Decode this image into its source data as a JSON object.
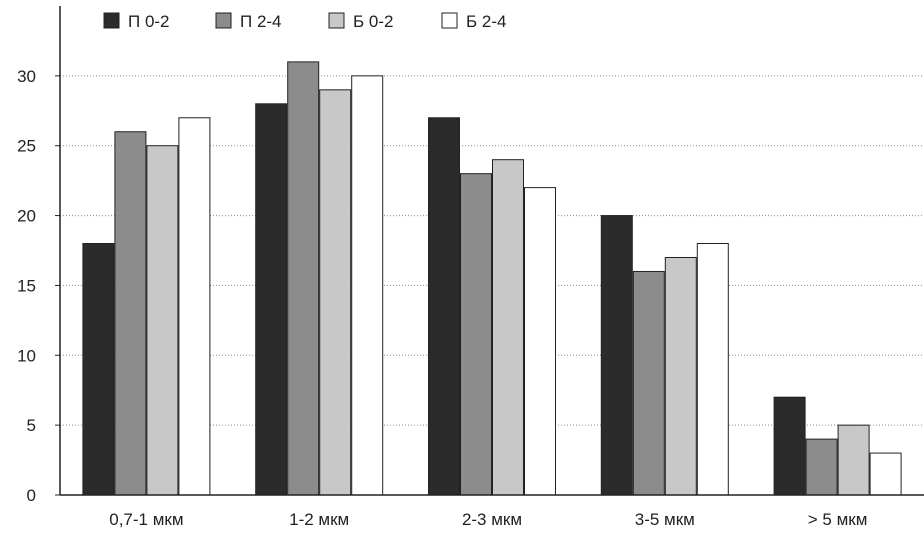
{
  "chart_data": {
    "type": "bar",
    "title": "",
    "xlabel": "",
    "ylabel": "",
    "categories": [
      "0,7-1 мкм",
      "1-2 мкм",
      "2-3 мкм",
      "3-5 мкм",
      "> 5 мкм"
    ],
    "series": [
      {
        "name": "П 0-2",
        "color": "#2b2b2b",
        "values": [
          18,
          28,
          27,
          20,
          7
        ]
      },
      {
        "name": "П 2-4",
        "color": "#8c8c8c",
        "values": [
          26,
          31,
          23,
          16,
          4
        ]
      },
      {
        "name": "Б 0-2",
        "color": "#c8c8c8",
        "values": [
          25,
          29,
          24,
          17,
          5
        ]
      },
      {
        "name": "Б 2-4",
        "color": "#ffffff",
        "values": [
          27,
          30,
          22,
          18,
          3
        ]
      }
    ],
    "ylim": [
      0,
      35
    ],
    "yticks": [
      "0",
      "5",
      "10",
      "15",
      "20",
      "25",
      "30"
    ],
    "grid": "horizontal dotted",
    "legend_position": "top-left"
  }
}
